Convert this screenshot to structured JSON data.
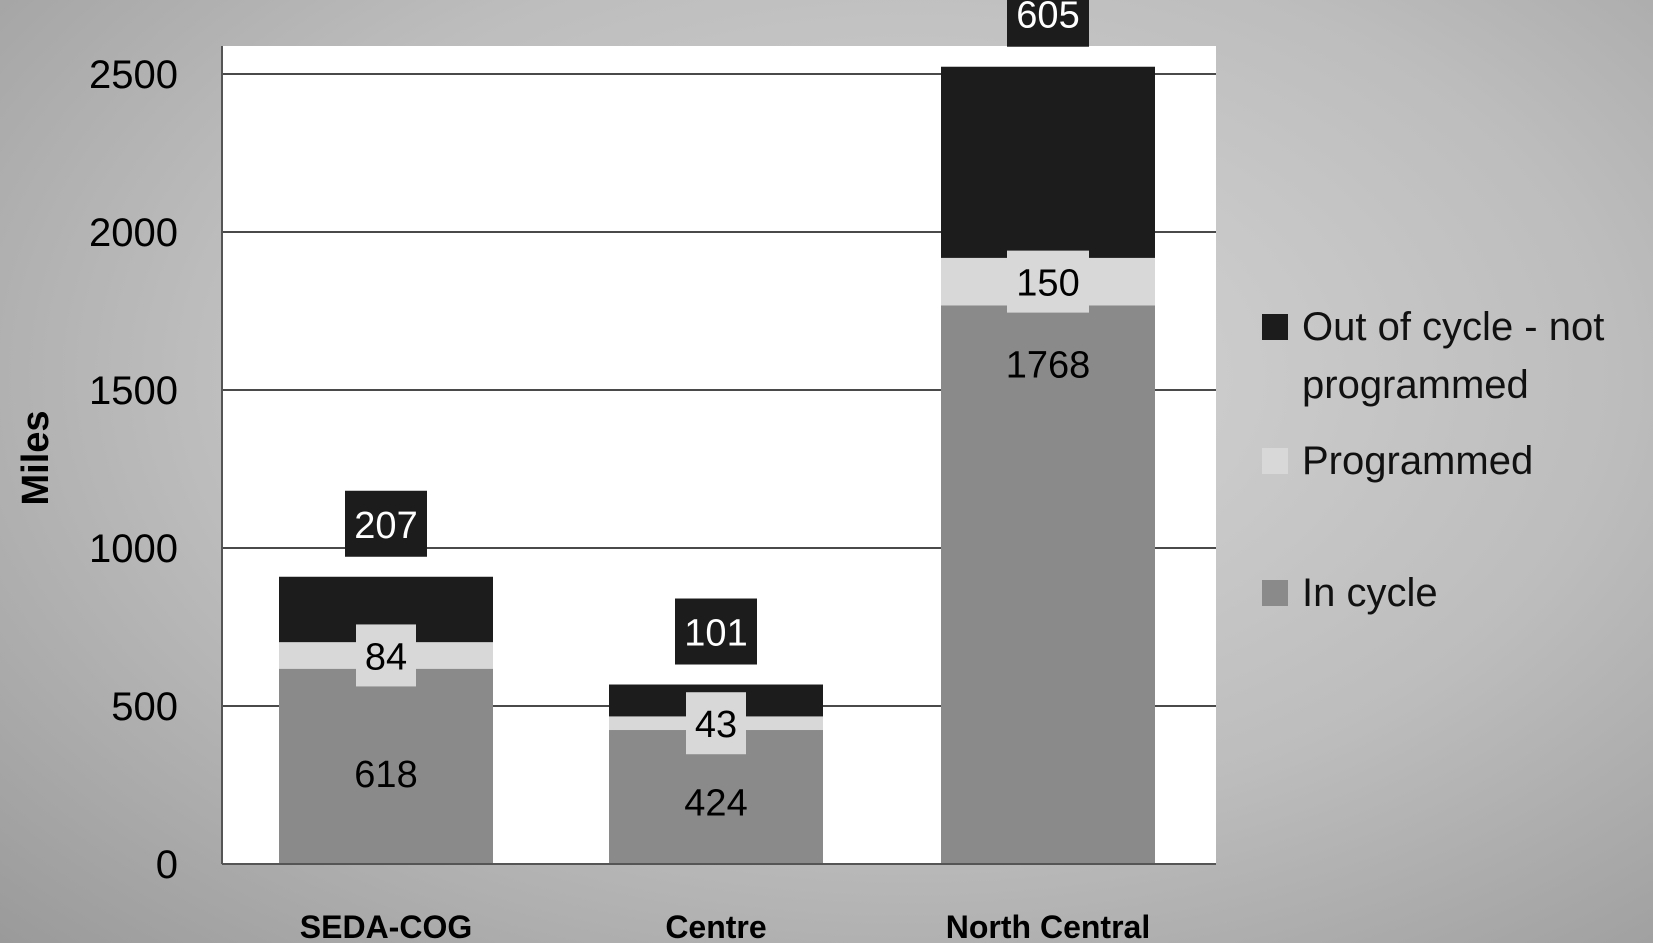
{
  "chart_data": {
    "type": "bar",
    "stacked": true,
    "categories": [
      "SEDA-COG",
      "Centre",
      "North Central"
    ],
    "series": [
      {
        "name": "In cycle",
        "values": [
          618,
          424,
          1768
        ],
        "color": "#8a8a8a",
        "label_color": "#000000"
      },
      {
        "name": "Programmed",
        "values": [
          84,
          43,
          150
        ],
        "color": "#d8d8d8",
        "label_color": "#000000"
      },
      {
        "name": "Out of cycle - not programmed",
        "values": [
          207,
          101,
          605
        ],
        "color": "#1c1c1c",
        "label_color": "#ffffff"
      }
    ],
    "legend_lines": {
      "Out of cycle - not programmed": [
        "Out of cycle - not",
        "programmed"
      ]
    },
    "ylabel": "Miles",
    "xlabel": "",
    "title": "",
    "ylim": [
      0,
      2500
    ],
    "yticks": [
      0,
      500,
      1000,
      1500,
      2000,
      2500
    ],
    "grid": true,
    "legend_position": "right",
    "plot_background": "#ffffff",
    "gridline_color": "#4a4a4a"
  }
}
